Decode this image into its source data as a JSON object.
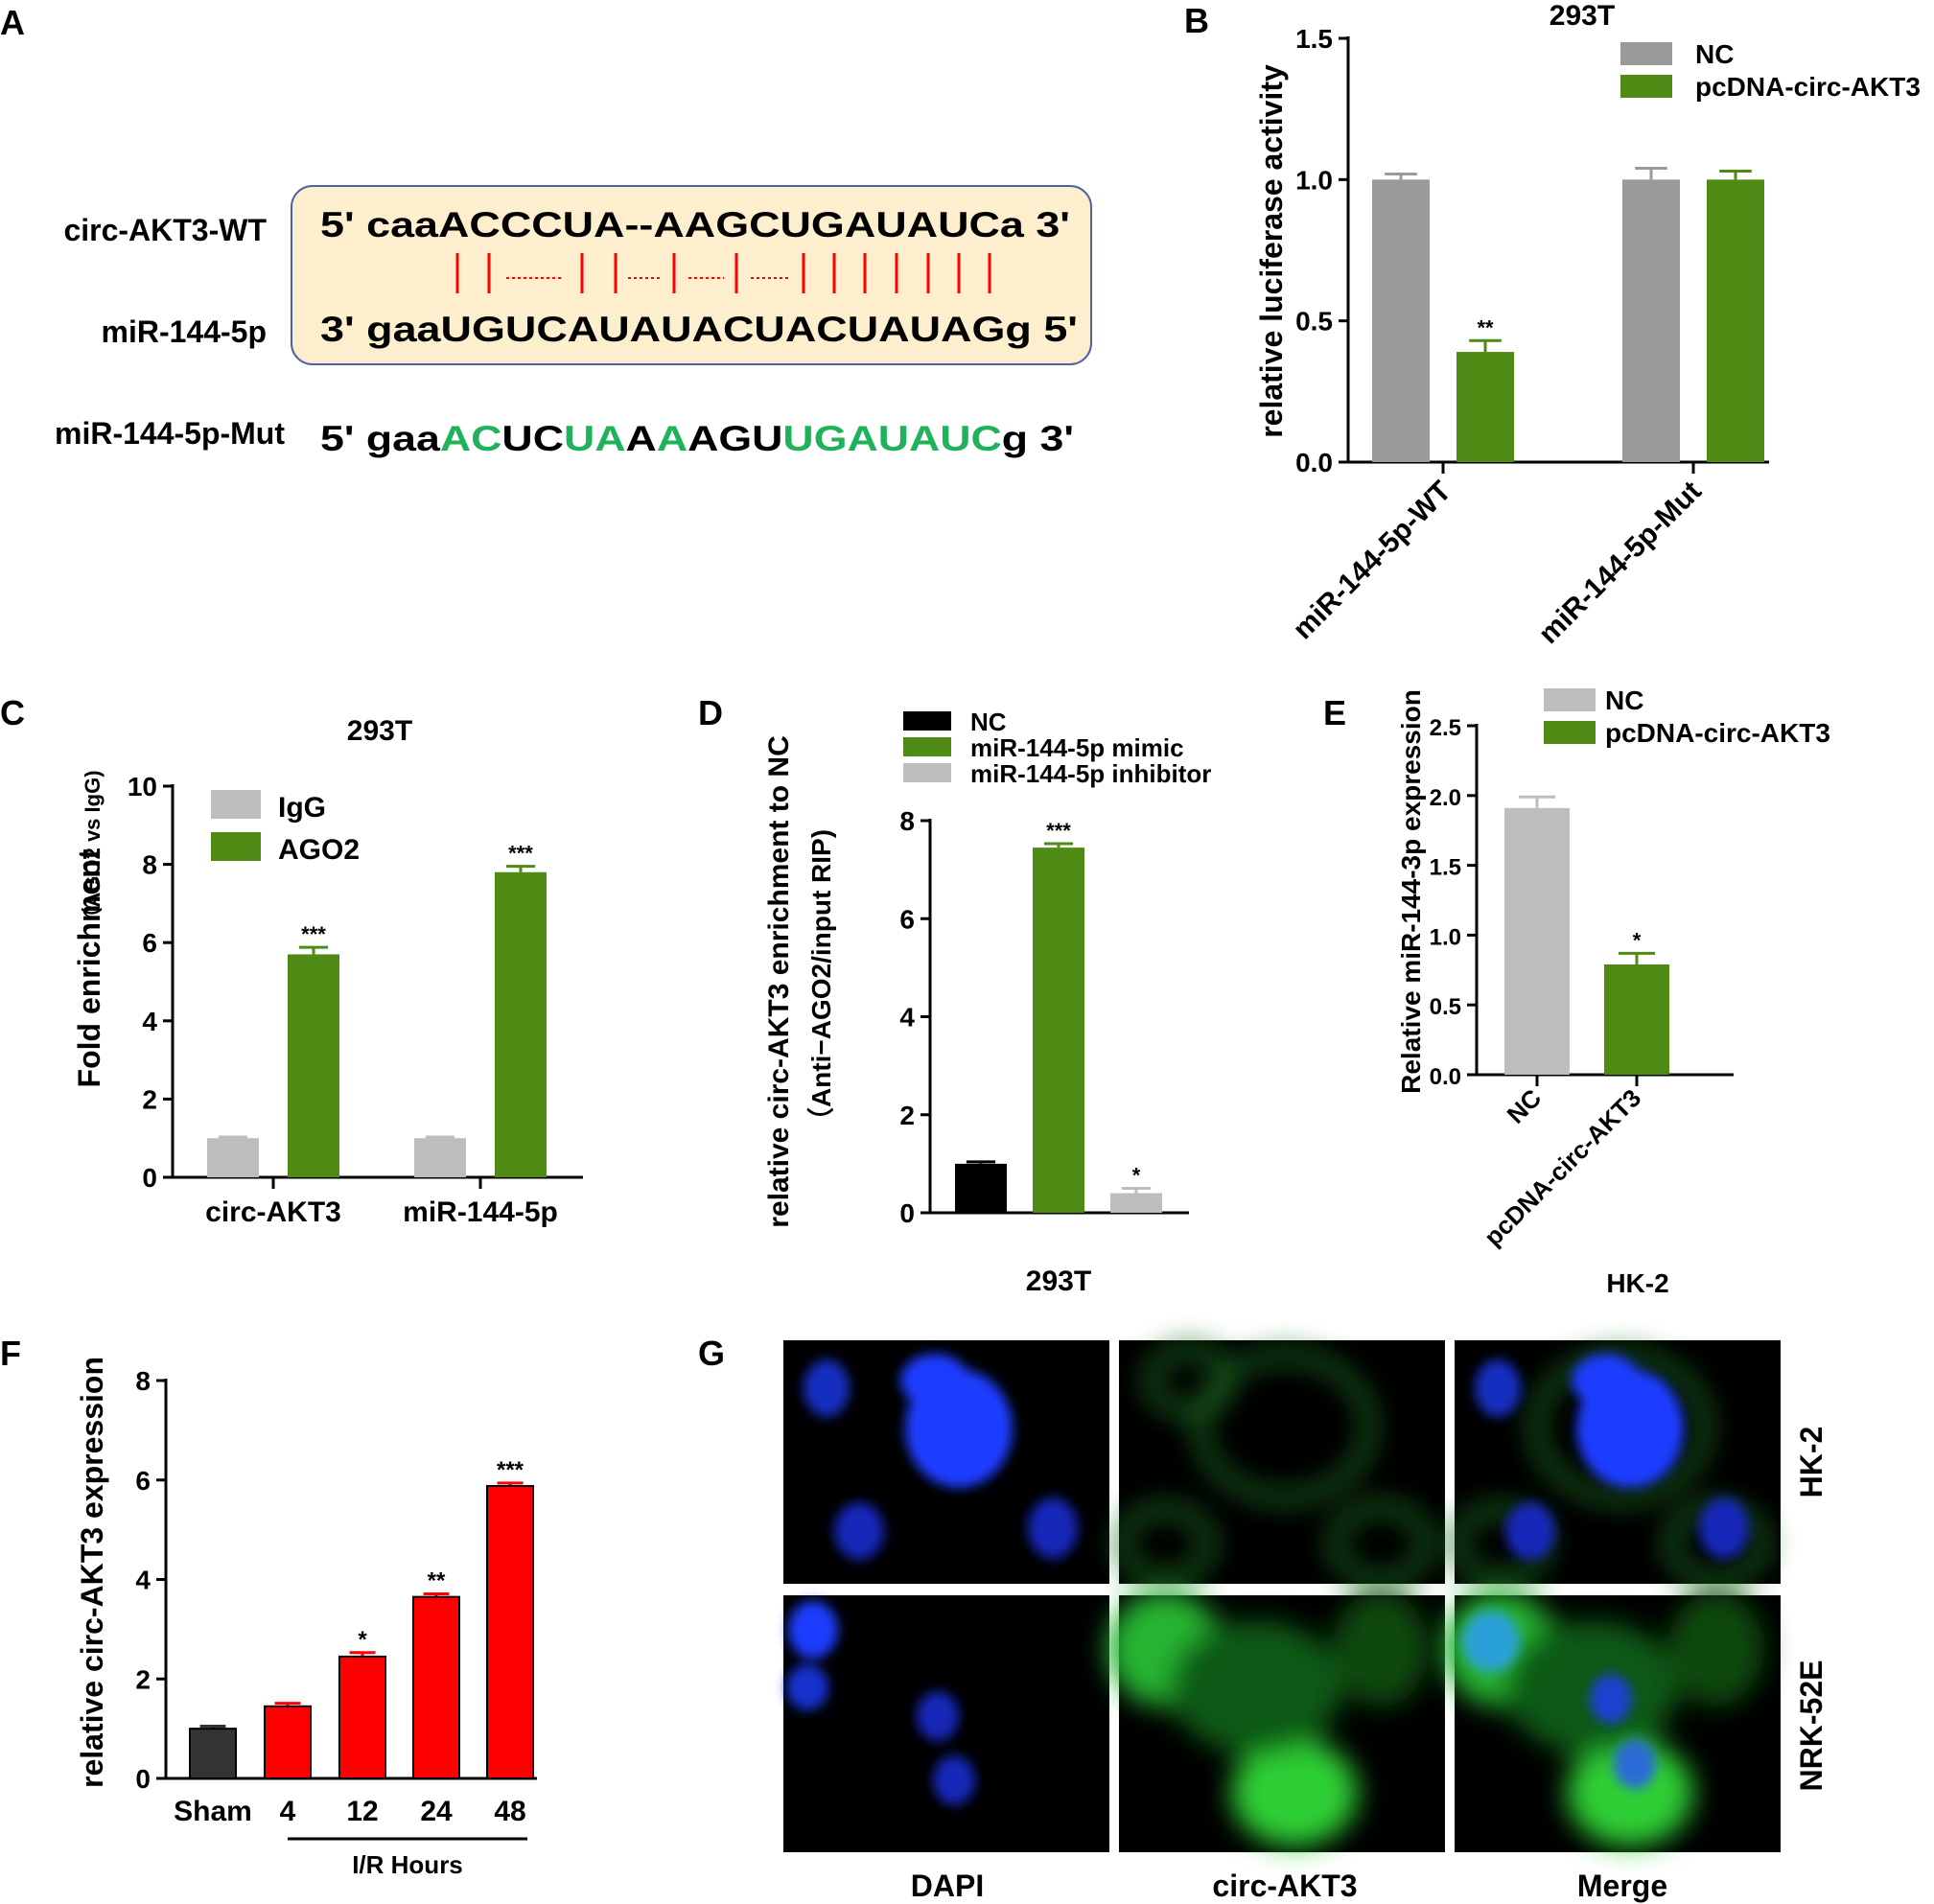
{
  "colors": {
    "green": "#4e8a14",
    "gray": "#9a9a9a",
    "light_gray": "#bdbdbd",
    "black": "#000000",
    "red": "#ff0000",
    "dark": "#333333",
    "box_fill": "#fdeecd",
    "box_stroke": "#4a62a8",
    "match_red": "#ff0000",
    "mut_green": "#1fb25a"
  },
  "panel_labels": {
    "a": "A",
    "b": "B",
    "c": "C",
    "d": "D",
    "e": "E",
    "f": "F",
    "g": "G"
  },
  "panel_a": {
    "rows": [
      {
        "label": "circ-AKT3-WT",
        "segments": [
          {
            "text": "5' caaACCCUA--AAGCUGAUAUCa 3'",
            "color": "black"
          }
        ]
      },
      {
        "label": "miR-144-5p",
        "segments": [
          {
            "text": "3' gaaUGUCAUAUACUACUAUAGg 5'",
            "color": "black"
          }
        ]
      },
      {
        "label": "miR-144-5p-Mut",
        "segments": [
          {
            "text": "5' gaa",
            "color": "black"
          },
          {
            "text": "AC",
            "color": "green"
          },
          {
            "text": "UC",
            "color": "black"
          },
          {
            "text": "UA",
            "color": "green"
          },
          {
            "text": "A",
            "color": "black"
          },
          {
            "text": "A",
            "color": "green"
          },
          {
            "text": "AGU",
            "color": "black"
          },
          {
            "text": "UGAUAUC",
            "color": "green"
          },
          {
            "text": "g 3'",
            "color": "black"
          }
        ]
      }
    ],
    "pairing": [
      "solid",
      "solid",
      "dotted",
      "solid",
      "solid",
      "dotted",
      "solid",
      "dotted",
      "solid",
      "dotted",
      "solid",
      "solid",
      "solid",
      "solid",
      "solid",
      "solid"
    ]
  },
  "chart_data": [
    {
      "panel": "B",
      "type": "bar",
      "title": "293T",
      "ylabel": "relative  luciferase activity",
      "categories": [
        "miR-144-5p-WT",
        "miR-144-5p-Mut"
      ],
      "series": [
        {
          "name": "NC",
          "values": [
            1.0,
            1.0
          ],
          "errors": [
            0.02,
            0.04
          ],
          "color": "#9a9a9a"
        },
        {
          "name": "pcDNA-circ-AKT3",
          "values": [
            0.39,
            1.0
          ],
          "errors": [
            0.04,
            0.03
          ],
          "color": "#4e8a14"
        }
      ],
      "significance": [
        [
          "",
          ""
        ],
        [
          "**",
          ""
        ]
      ],
      "ylim": [
        0,
        1.5
      ],
      "yticks": [
        "0.0",
        "0.5",
        "1.0",
        "1.5"
      ],
      "legend": "top-right"
    },
    {
      "panel": "C",
      "type": "bar",
      "title": "293T",
      "ylabel": "Fold enrichment",
      "ylabel_sub": "（AGO2 vs IgG)",
      "categories": [
        "circ-AKT3",
        "miR-144-5p"
      ],
      "series": [
        {
          "name": "IgG",
          "values": [
            1.0,
            1.0
          ],
          "errors": [
            0.03,
            0.03
          ],
          "color": "#bdbdbd"
        },
        {
          "name": "AGO2",
          "values": [
            5.7,
            7.8
          ],
          "errors": [
            0.18,
            0.15
          ],
          "color": "#4e8a14"
        }
      ],
      "significance": [
        [
          "",
          ""
        ],
        [
          "***",
          "***"
        ]
      ],
      "ylim": [
        0,
        10
      ],
      "yticks": [
        "0",
        "2",
        "4",
        "6",
        "8",
        "10"
      ],
      "legend": "top-left"
    },
    {
      "panel": "D",
      "type": "bar",
      "xlabel": "293T",
      "ylabel": "relative  circ-AKT3 enrichment to NC",
      "ylabel_sub": "（Anti−AGO2/input RIP)",
      "categories": [
        "NC",
        "miR-144-5p mimic",
        "miR-144-5p inhibitor"
      ],
      "values": [
        1.0,
        7.45,
        0.4
      ],
      "errors": [
        0.04,
        0.08,
        0.1
      ],
      "colors": [
        "#000000",
        "#4e8a14",
        "#bdbdbd"
      ],
      "significance": [
        "",
        "***",
        "*"
      ],
      "ylim": [
        0,
        8
      ],
      "yticks": [
        "0",
        "2",
        "4",
        "6",
        "8"
      ],
      "legend": "top"
    },
    {
      "panel": "E",
      "type": "bar",
      "xlabel": "HK-2",
      "ylabel": "Relative  miR-144-3p expression",
      "categories": [
        "NC",
        "pcDNA-circ-AKT3"
      ],
      "values": [
        1.91,
        0.79
      ],
      "errors": [
        0.08,
        0.08
      ],
      "colors": [
        "#bdbdbd",
        "#4e8a14"
      ],
      "significance": [
        "",
        "*"
      ],
      "ylim": [
        0,
        2.5
      ],
      "yticks": [
        "0.0",
        "0.5",
        "1.0",
        "1.5",
        "2.0",
        "2.5"
      ],
      "legend": "top-right"
    },
    {
      "panel": "F",
      "type": "bar",
      "ylabel": "relative circ-AKT3 expression",
      "xlabel": "I/R Hours",
      "categories": [
        "Sham",
        "4",
        "12",
        "24",
        "48"
      ],
      "values": [
        1.0,
        1.45,
        2.45,
        3.65,
        5.88
      ],
      "errors": [
        0.05,
        0.06,
        0.08,
        0.06,
        0.06
      ],
      "colors": [
        "#333333",
        "#ff0000",
        "#ff0000",
        "#ff0000",
        "#ff0000"
      ],
      "significance": [
        "",
        "",
        "*",
        "**",
        "***"
      ],
      "ylim": [
        0,
        8
      ],
      "yticks": [
        "0",
        "2",
        "4",
        "6",
        "8"
      ]
    }
  ],
  "panel_g": {
    "columns": [
      "DAPI",
      "circ-AKT3",
      "Merge"
    ],
    "rows": [
      "HK-2",
      "NRK-52E"
    ]
  }
}
